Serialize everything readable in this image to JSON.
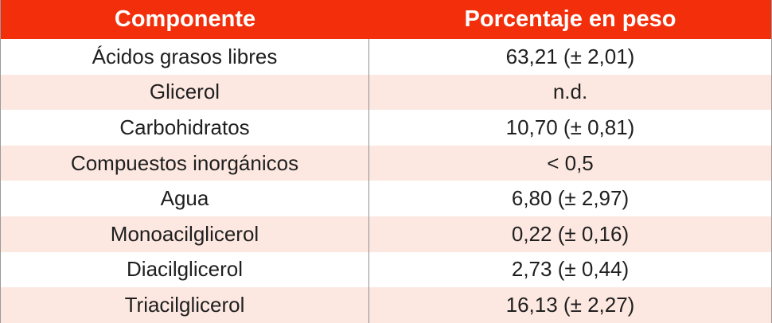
{
  "table": {
    "headers": {
      "component": "Componente",
      "percentage": "Porcentaje en peso"
    },
    "rows": [
      {
        "component": "Ácidos grasos libres",
        "percentage": "63,21 (± 2,01)"
      },
      {
        "component": "Glicerol",
        "percentage": "n.d."
      },
      {
        "component": "Carbohidratos",
        "percentage": "10,70 (± 0,81)"
      },
      {
        "component": "Compuestos inorgánicos",
        "percentage": "< 0,5"
      },
      {
        "component": "Agua",
        "percentage": "6,80 (± 2,97)"
      },
      {
        "component": "Monoacilglicerol",
        "percentage": "0,22 (± 0,16)"
      },
      {
        "component": "Diacilglicerol",
        "percentage": "2,73 (± 0,44)"
      },
      {
        "component": "Triacilglicerol",
        "percentage": "16,13 (± 2,27)"
      }
    ],
    "colors": {
      "header_bg": "#f32f0b",
      "stripe_bg": "#fde8e1"
    }
  }
}
